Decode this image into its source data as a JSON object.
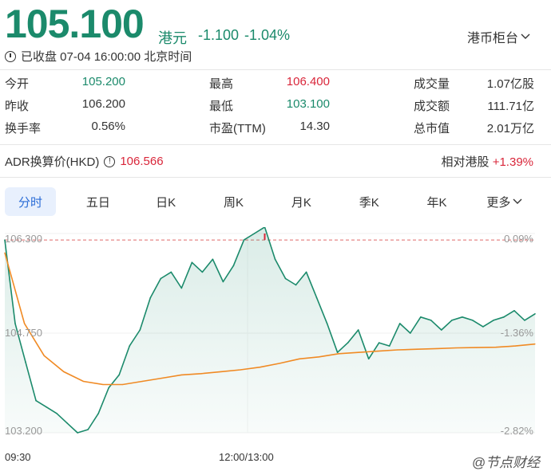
{
  "quote": {
    "price": "105.100",
    "currency": "港元",
    "change": "-1.100",
    "change_pct": "-1.04%",
    "counter_label": "港币柜台",
    "status": "已收盘 07-04 16:00:00 北京时间"
  },
  "stats": [
    {
      "label": "今开",
      "value": "105.200",
      "color": "green"
    },
    {
      "label": "最高",
      "value": "106.400",
      "color": "red"
    },
    {
      "label": "成交量",
      "value": "1.07亿股",
      "color": "dark"
    },
    {
      "label": "昨收",
      "value": "106.200",
      "color": "dark"
    },
    {
      "label": "最低",
      "value": "103.100",
      "color": "green"
    },
    {
      "label": "成交额",
      "value": "111.71亿",
      "color": "dark"
    },
    {
      "label": "换手率",
      "value": "0.56%",
      "color": "dark"
    },
    {
      "label": "市盈(TTM)",
      "value": "14.30",
      "color": "dark"
    },
    {
      "label": "总市值",
      "value": "2.01万亿",
      "color": "dark"
    }
  ],
  "adr": {
    "label": "ADR换算价(HKD)",
    "value": "106.566",
    "relative_label": "相对港股",
    "relative_value": "+1.39%"
  },
  "tabs": [
    "分时",
    "五日",
    "日K",
    "周K",
    "月K",
    "季K",
    "年K",
    "更多"
  ],
  "active_tab": "分时",
  "chart": {
    "y_left_labels": [
      "106.300",
      "104.750",
      "103.200"
    ],
    "y_right_labels": [
      "0.09%",
      "-1.36%",
      "-2.82%"
    ],
    "x_labels": [
      "09:30",
      "12:00/13:00"
    ],
    "prev_close": 106.2,
    "y_range": [
      103.2,
      106.3
    ]
  },
  "chart_data": {
    "type": "line",
    "title": "",
    "xlabel": "",
    "ylabel": "",
    "ylim": [
      103.2,
      106.3
    ],
    "x_ticks": [
      "09:30",
      "12:00/13:00"
    ],
    "series": [
      {
        "name": "",
        "color": "#1b8a6b",
        "values": [
          106.2,
          104.9,
          104.3,
          103.7,
          103.6,
          103.5,
          103.35,
          103.2,
          103.25,
          103.5,
          103.9,
          104.1,
          104.55,
          104.8,
          105.3,
          105.6,
          105.7,
          105.45,
          105.85,
          105.7,
          105.9,
          105.55,
          105.8,
          106.2,
          106.3,
          106.4,
          105.9,
          105.6,
          105.5,
          105.7,
          105.3,
          104.9,
          104.45,
          104.6,
          104.8,
          104.35,
          104.6,
          104.55,
          104.9,
          104.75,
          105.0,
          104.95,
          104.8,
          104.95,
          105.0,
          104.95,
          104.85,
          104.95,
          105.0,
          105.1,
          104.95,
          105.05
        ]
      },
      {
        "name": "",
        "color": "#f08a24",
        "values": [
          106.0,
          104.9,
          104.4,
          104.15,
          104.0,
          103.95,
          103.95,
          104.0,
          104.05,
          104.1,
          104.12,
          104.15,
          104.18,
          104.22,
          104.28,
          104.35,
          104.38,
          104.43,
          104.45,
          104.47,
          104.49,
          104.5,
          104.51,
          104.52,
          104.525,
          104.53,
          104.55,
          104.58
        ]
      }
    ]
  },
  "watermark": "@节点财经"
}
